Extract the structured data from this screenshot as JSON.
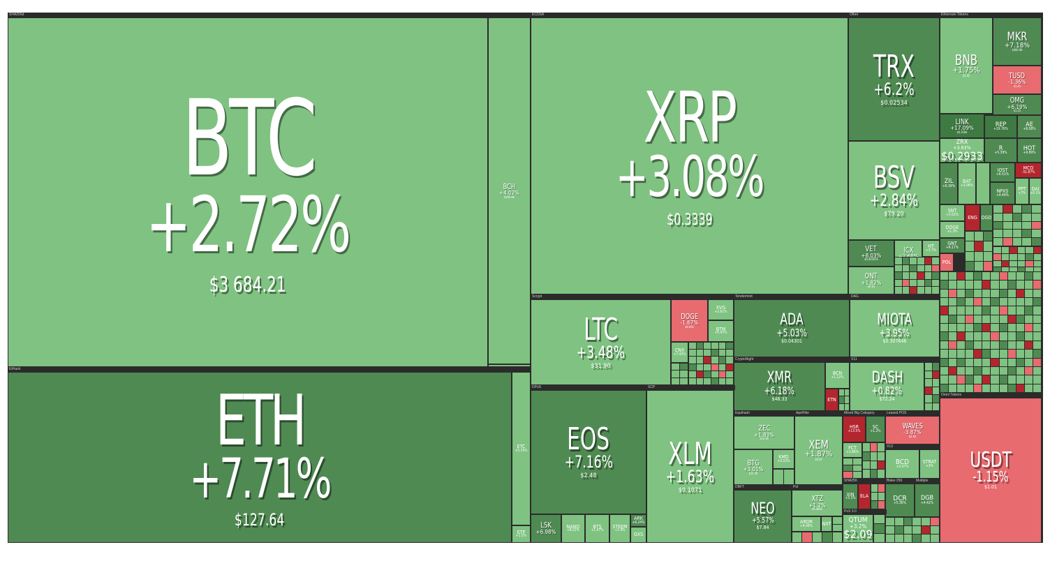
{
  "groups": {
    "sha256d": "SHA256d",
    "ethash": "EtHash",
    "ecdsa": "ECDSA",
    "other": "Other",
    "ethereum_tokens": "Ethereum Tokens",
    "scrypt": "Scrypt",
    "tendermint": "Tendermint",
    "dag": "DAG",
    "dpos": "DPoS",
    "scp": "SCP",
    "cryptonight": "CryptoNight",
    "x11": "X11",
    "equihash": "Equihash",
    "argon": "ApeHike",
    "mixed_category": "Mixed Big Category",
    "leased_pos": "Leased POS",
    "dbft": "DBFT",
    "poi": "PoI",
    "sha256": "SHA256",
    "blake256": "Blake 256",
    "multiple": "Multiple",
    "x13": "X13",
    "pos30": "PoS 3.0",
    "omni_tokens": "Omni Tokens"
  },
  "tiles": {
    "btc": {
      "symbol": "BTC",
      "change": "+2.72%",
      "price": "$3 684.21"
    },
    "eth": {
      "symbol": "ETH",
      "change": "+7.71%",
      "price": "$127.64"
    },
    "bch": {
      "symbol": "BCH",
      "change": "+4.02%",
      "price": "$160.86"
    },
    "etc": {
      "symbol": "ETC",
      "change": "+5.33%"
    },
    "etp": {
      "symbol": "ETP",
      "change": "+1.5%"
    },
    "xrp": {
      "symbol": "XRP",
      "change": "+3.08%",
      "price": "$0.3339"
    },
    "trx": {
      "symbol": "TRX",
      "change": "+6.2%",
      "price": "$0.02534"
    },
    "bsv": {
      "symbol": "BSV",
      "change": "+2.84%",
      "price": "$79.20"
    },
    "vet": {
      "symbol": "VET",
      "change": "+8.03%",
      "price": "$0.005076"
    },
    "icx": {
      "symbol": "ICX",
      "change": "+2.68%"
    },
    "ht": {
      "symbol": "HT",
      "change": "+3.7%"
    },
    "ont": {
      "symbol": "ONT",
      "change": "+1.82%",
      "price": "$0.63"
    },
    "bnb": {
      "symbol": "BNB",
      "change": "+1.75%",
      "price": "$5.95"
    },
    "mkr": {
      "symbol": "MKR",
      "change": "+7.18%",
      "price": "$460.08"
    },
    "tusd": {
      "symbol": "TUSD",
      "change": "-1.36%",
      "price": "$1.01"
    },
    "omg": {
      "symbol": "OMG",
      "change": "+6.19%",
      "price": "$1.25"
    },
    "link": {
      "symbol": "LINK",
      "change": "+17.09%",
      "price": "$0.3566"
    },
    "rep": {
      "symbol": "REP",
      "change": "+29.76%"
    },
    "ae": {
      "symbol": "AE",
      "change": "+8.08%"
    },
    "zrx": {
      "symbol": "ZRX",
      "change": "+3.63%",
      "price": "$0.2933"
    },
    "r": {
      "symbol": "R",
      "change": "+5.39%"
    },
    "hot": {
      "symbol": "HOT",
      "change": "+9.89%"
    },
    "zil": {
      "symbol": "ZIL",
      "change": "+6.38%"
    },
    "bat": {
      "symbol": "BAT",
      "change": "+2.08%"
    },
    "iost": {
      "symbol": "IOST",
      "change": "+6.51%"
    },
    "mco": {
      "symbol": "MCO",
      "change": "-31.87%"
    },
    "npxs": {
      "symbol": "NPXS",
      "change": "+4.49%"
    },
    "ppt": {
      "symbol": "PPT",
      "change": "+7%"
    },
    "dai": {
      "symbol": "DAI",
      "change": "+0.1%"
    },
    "snt": {
      "symbol": "SNT",
      "change": "+3.52%"
    },
    "eng": {
      "symbol": "ENG"
    },
    "dgd": {
      "symbol": "DGD"
    },
    "doge_eth": {
      "symbol": "DOGE",
      "change": "+1.3%"
    },
    "gnt": {
      "symbol": "GNT",
      "change": "+6.17%"
    },
    "pol": {
      "symbol": "POL"
    },
    "ltc": {
      "symbol": "LTC",
      "change": "+3.48%",
      "price": "$31.90"
    },
    "doge": {
      "symbol": "DOGE",
      "change": "-1.67%",
      "price": "$0.002"
    },
    "xvg": {
      "symbol": "XVG",
      "change": "+2.61%"
    },
    "btm": {
      "symbol": "BTM",
      "change": "+5.47%"
    },
    "cnx": {
      "symbol": "CNX",
      "change": "+7.43%"
    },
    "ada": {
      "symbol": "ADA",
      "change": "+5.03%",
      "price": "$0.04301"
    },
    "miota": {
      "symbol": "MIOTA",
      "change": "+3.95%",
      "price": "$0.307646"
    },
    "xmr": {
      "symbol": "XMR",
      "change": "+6.18%",
      "price": "$46.33"
    },
    "bcn": {
      "symbol": "BCN",
      "change": "+1.12%"
    },
    "etn": {
      "symbol": "ETN",
      "change": "-2.4%"
    },
    "dash": {
      "symbol": "DASH",
      "change": "+0.82%",
      "price": "$72.24"
    },
    "eos": {
      "symbol": "EOS",
      "change": "+7.16%",
      "price": "$2.48"
    },
    "lsk": {
      "symbol": "LSK",
      "change": "+6.98%"
    },
    "nano": {
      "symbol": "NANO",
      "change": "+8.02%"
    },
    "bts": {
      "symbol": "BTS",
      "change": "+1.07%"
    },
    "steem": {
      "symbol": "STEEM",
      "change": "+1.9%"
    },
    "ark": {
      "symbol": "ARK",
      "change": "+6.24%"
    },
    "gxs": {
      "symbol": "GXS"
    },
    "xlm": {
      "symbol": "XLM",
      "change": "+1.63%",
      "price": "$0.1071"
    },
    "zec": {
      "symbol": "ZEC",
      "change": "+1.83%",
      "price": "$52.94"
    },
    "btg": {
      "symbol": "BTG",
      "change": "+3.01%",
      "price": "$12.30"
    },
    "kmd": {
      "symbol": "KMD",
      "change": "+3.52%"
    },
    "xem": {
      "symbol": "XEM",
      "change": "+1.87%",
      "price": "$0.05"
    },
    "hsr": {
      "symbol": "HSR",
      "change": "+13.5%"
    },
    "sc": {
      "symbol": "SC",
      "change": "+1.2%"
    },
    "waves": {
      "symbol": "WAVES",
      "change": "-3.87%",
      "price": "$2.63"
    },
    "fct": {
      "symbol": "FCT",
      "change": "+1.68%"
    },
    "bcd": {
      "symbol": "BCD",
      "change": "+2.97%"
    },
    "strat": {
      "symbol": "STRAT",
      "change": "+3%"
    },
    "neo": {
      "symbol": "NEO",
      "change": "+5.57%",
      "price": "$7.84"
    },
    "xtz": {
      "symbol": "XTZ",
      "change": "+1.2%",
      "price": "$0.4685"
    },
    "ardr": {
      "symbol": "ARDR",
      "change": "+4.08%"
    },
    "nxt": {
      "symbol": "NXT"
    },
    "xin": {
      "symbol": "XIN",
      "change": "+3.1%"
    },
    "ela": {
      "symbol": "ELA"
    },
    "dcr": {
      "symbol": "DCR",
      "change": "+5.36%"
    },
    "dgb": {
      "symbol": "DGB",
      "change": "+4.42%"
    },
    "qtum": {
      "symbol": "QTUM",
      "change": "+3.2%",
      "price": "$2.09"
    },
    "usdt": {
      "symbol": "USDT",
      "change": "-1.15%",
      "price": "$1.01"
    }
  }
}
